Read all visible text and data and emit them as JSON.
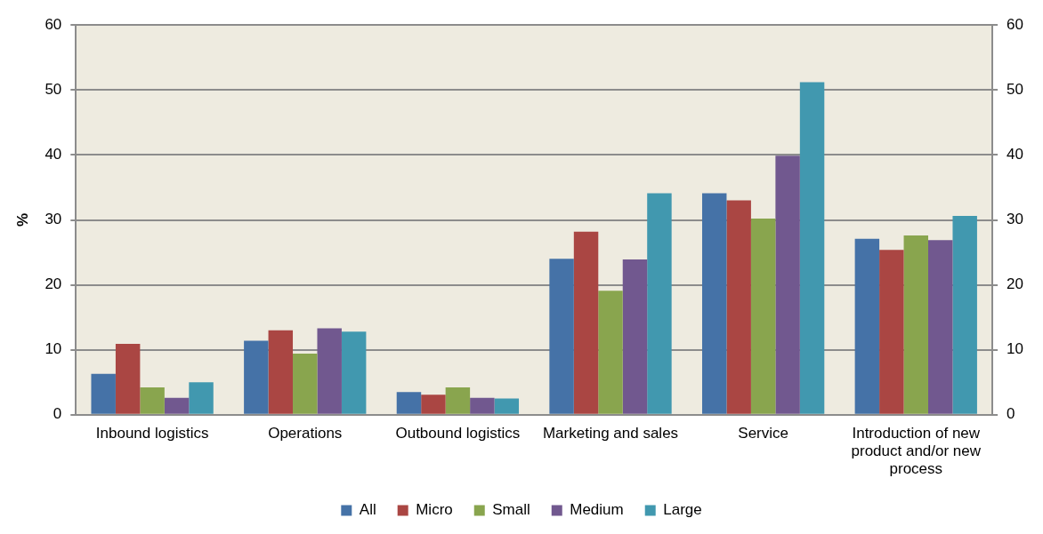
{
  "chart_data": {
    "type": "bar",
    "ylabel": "%",
    "categories": [
      "Inbound logistics",
      "Operations",
      "Outbound logistics",
      "Marketing and sales",
      "Service",
      "Introduction of new product and/or new process"
    ],
    "series": [
      {
        "name": "All",
        "color": "#4572a7",
        "values": [
          6.3,
          11.4,
          3.5,
          24.0,
          34.1,
          27.1
        ]
      },
      {
        "name": "Micro",
        "color": "#aa4643",
        "values": [
          10.9,
          13.0,
          3.1,
          28.2,
          33.0,
          25.4
        ]
      },
      {
        "name": "Small",
        "color": "#89a54e",
        "values": [
          4.2,
          9.4,
          4.2,
          19.1,
          30.2,
          27.6
        ]
      },
      {
        "name": "Medium",
        "color": "#71588f",
        "values": [
          2.6,
          13.3,
          2.6,
          23.9,
          39.9,
          26.9
        ]
      },
      {
        "name": "Large",
        "color": "#4198af",
        "values": [
          5.0,
          12.8,
          2.5,
          34.1,
          51.2,
          30.6
        ]
      }
    ],
    "ylim": [
      0,
      60
    ],
    "yticks": [
      0,
      10,
      20,
      30,
      40,
      50,
      60
    ],
    "y2lim": [
      0,
      60
    ],
    "y2ticks": [
      0,
      10,
      20,
      30,
      40,
      50,
      60
    ],
    "grid": "y",
    "legend": "bottom"
  }
}
